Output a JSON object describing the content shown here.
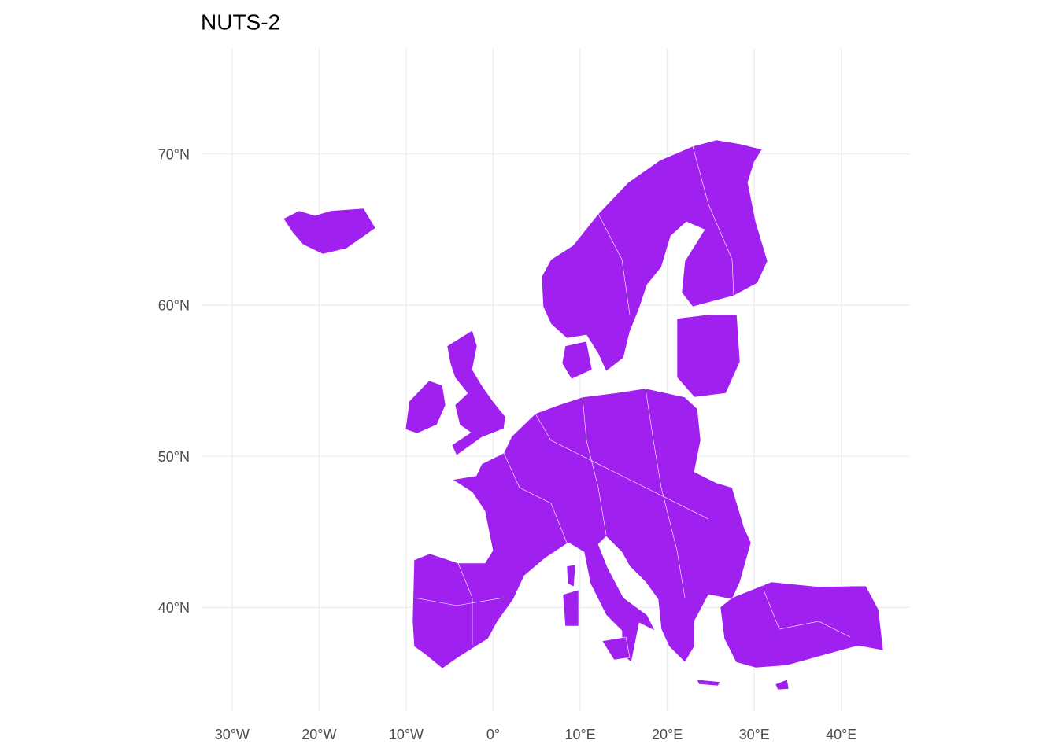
{
  "chart_data": {
    "type": "map",
    "title": "NUTS-2",
    "fill_color": "#a020f0",
    "grid": true,
    "xlim": [
      -33.6,
      47.8
    ],
    "ylim": [
      33.1,
      76.96
    ],
    "xticks": [
      {
        "value": -30,
        "label": "30°W"
      },
      {
        "value": -20,
        "label": "20°W"
      },
      {
        "value": -10,
        "label": "10°W"
      },
      {
        "value": 0,
        "label": "0°"
      },
      {
        "value": 10,
        "label": "10°E"
      },
      {
        "value": 20,
        "label": "20°E"
      },
      {
        "value": 30,
        "label": "30°E"
      },
      {
        "value": 40,
        "label": "40°E"
      }
    ],
    "yticks": [
      {
        "value": 40,
        "label": "40°N"
      },
      {
        "value": 50,
        "label": "50°N"
      },
      {
        "value": 60,
        "label": "60°N"
      },
      {
        "value": 70,
        "label": "70°N"
      }
    ]
  }
}
